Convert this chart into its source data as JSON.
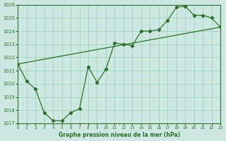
{
  "xlabel": "Graphe pression niveau de la mer (hPa)",
  "bg_color": "#cce8e0",
  "grid_color": "#99ccbb",
  "line_color": "#2d6e2d",
  "x_min": 0,
  "x_max": 23,
  "y_min": 1017,
  "y_max": 1026,
  "y_ticks": [
    1017,
    1018,
    1019,
    1020,
    1021,
    1022,
    1023,
    1024,
    1025,
    1026
  ],
  "x_ticks": [
    0,
    1,
    2,
    3,
    4,
    5,
    6,
    7,
    8,
    9,
    10,
    11,
    12,
    13,
    14,
    15,
    16,
    17,
    18,
    19,
    20,
    21,
    22,
    23
  ],
  "series1_x": [
    0,
    1,
    2,
    3,
    4,
    5,
    6,
    7,
    8,
    9,
    10,
    11,
    12,
    13,
    14,
    15,
    16,
    17,
    18,
    19,
    20,
    21,
    22,
    23
  ],
  "series1_y": [
    1021.5,
    1020.2,
    1019.6,
    1017.8,
    1017.2,
    1017.2,
    1017.8,
    1018.1,
    1021.3,
    1020.1,
    1021.1,
    1023.1,
    1023.0,
    1022.9,
    1024.0,
    1024.0,
    1024.1,
    1024.8,
    1025.8,
    1025.9,
    1025.2,
    1025.2,
    1025.0,
    1024.3
  ],
  "series2_x": [
    0,
    23
  ],
  "series2_y": [
    1021.5,
    1024.3
  ]
}
